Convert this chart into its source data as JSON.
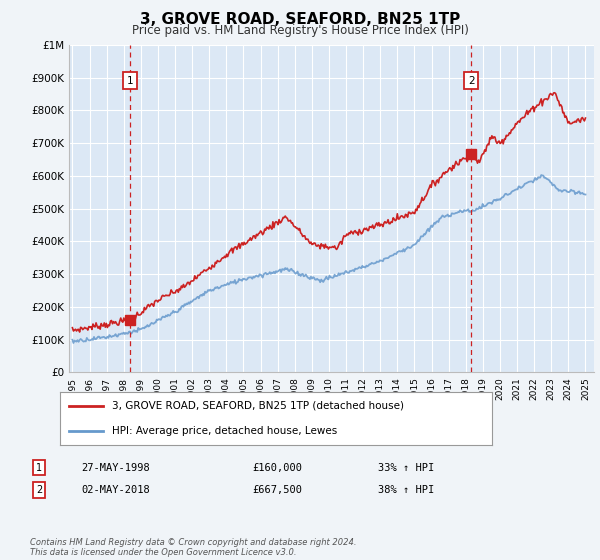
{
  "title": "3, GROVE ROAD, SEAFORD, BN25 1TP",
  "subtitle": "Price paid vs. HM Land Registry's House Price Index (HPI)",
  "legend_line1": "3, GROVE ROAD, SEAFORD, BN25 1TP (detached house)",
  "legend_line2": "HPI: Average price, detached house, Lewes",
  "point1_date": "27-MAY-1998",
  "point1_price": "£160,000",
  "point1_hpi": "33% ↑ HPI",
  "point1_year": 1998.38,
  "point1_value": 160000,
  "point2_date": "02-MAY-2018",
  "point2_price": "£667,500",
  "point2_hpi": "38% ↑ HPI",
  "point2_year": 2018.33,
  "point2_value": 667500,
  "background_color": "#f0f4f8",
  "plot_bg": "#dce8f5",
  "red_color": "#cc2222",
  "blue_color": "#6699cc",
  "grid_color": "#ffffff",
  "footnote": "Contains HM Land Registry data © Crown copyright and database right 2024.\nThis data is licensed under the Open Government Licence v3.0.",
  "ylim": [
    0,
    1000000
  ],
  "xlim_start": 1994.8,
  "xlim_end": 2025.5,
  "yticks": [
    0,
    100000,
    200000,
    300000,
    400000,
    500000,
    600000,
    700000,
    800000,
    900000,
    1000000
  ],
  "ytick_labels": [
    "£0",
    "£100K",
    "£200K",
    "£300K",
    "£400K",
    "£500K",
    "£600K",
    "£700K",
    "£800K",
    "£900K",
    "£1M"
  ]
}
